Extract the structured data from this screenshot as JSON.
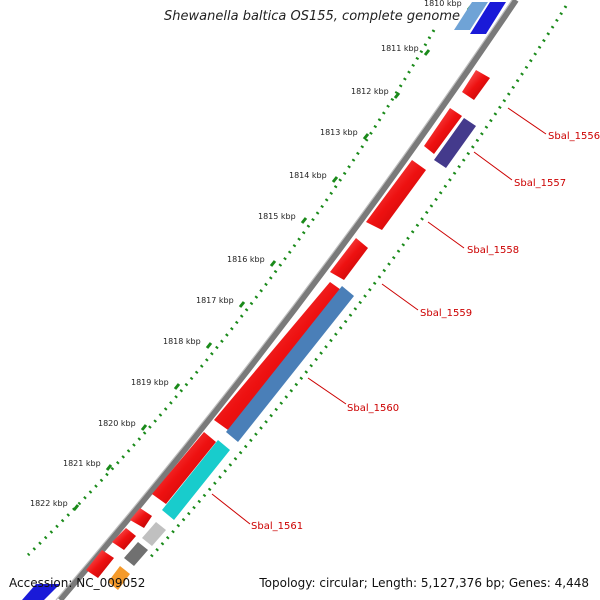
{
  "title": "Shewanella baltica OS155, complete genome",
  "accession": "Accession: NC_009052",
  "summary": "Topology: circular; Length: 5,127,376 bp; Genes: 4,448",
  "ticks": [
    "1810 kbp",
    "1811 kbp",
    "1812 kbp",
    "1813 kbp",
    "1814 kbp",
    "1815 kbp",
    "1816 kbp",
    "1817 kbp",
    "1818 kbp",
    "1819 kbp",
    "1820 kbp",
    "1821 kbp",
    "1822 kbp"
  ],
  "gene_labels": [
    "Sbal_1556",
    "Sbal_1557",
    "Sbal_1558",
    "Sbal_1559",
    "Sbal_1560",
    "Sbal_1561"
  ],
  "colors": {
    "backbone": "#7a7a7a",
    "cds": "#ee1111",
    "dotted_track": "#1a8a1a",
    "label": "#cc0000",
    "steelblue": "#4a7fb8",
    "cyan": "#18cccc",
    "purple": "#443a8c",
    "gray_light": "#c0c0c0",
    "gray_dark": "#707070",
    "orange": "#f59a2a",
    "blue": "#1a1ad8"
  }
}
